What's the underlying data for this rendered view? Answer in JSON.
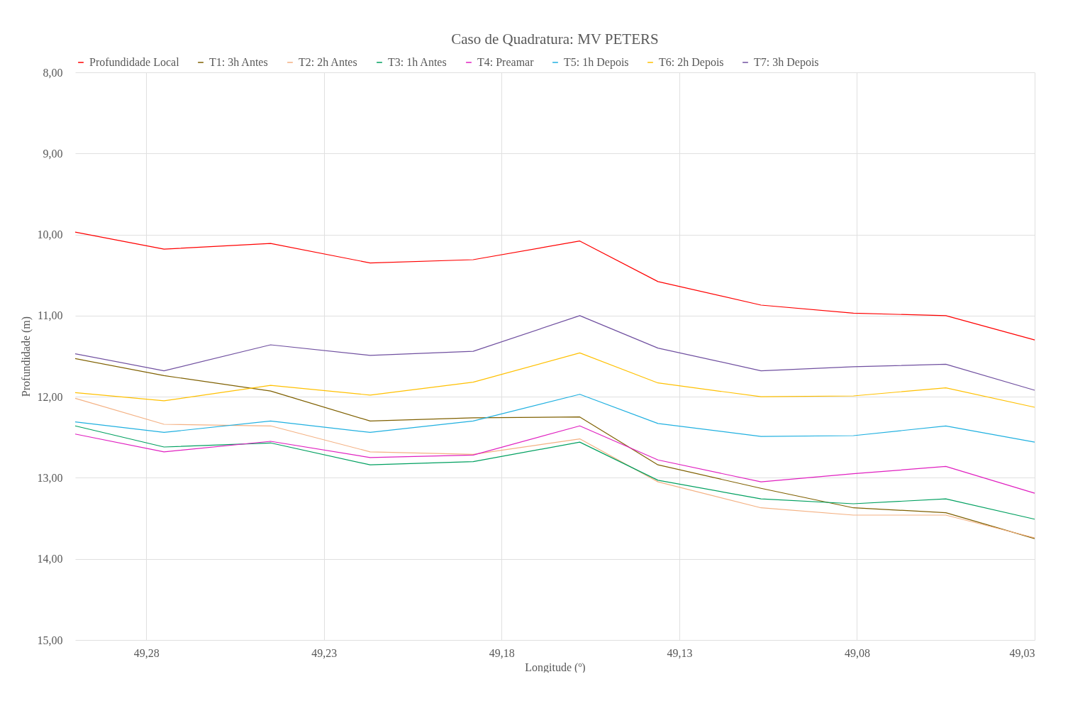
{
  "chart_data": {
    "type": "line",
    "title": "Caso de Quadratura: MV PETERS",
    "xlabel": "Longitude (º)",
    "ylabel": "Profundidade (m)",
    "x": [
      49.3,
      49.275,
      49.245,
      49.217,
      49.188,
      49.158,
      49.136,
      49.107,
      49.081,
      49.055,
      49.03
    ],
    "xlim": [
      49.3,
      49.03
    ],
    "xticks": [
      {
        "value": 49.28,
        "label": "49,28"
      },
      {
        "value": 49.23,
        "label": "49,23"
      },
      {
        "value": 49.18,
        "label": "49,18"
      },
      {
        "value": 49.13,
        "label": "49,13"
      },
      {
        "value": 49.08,
        "label": "49,08"
      },
      {
        "value": 49.03,
        "label": "49,03"
      }
    ],
    "ylim": [
      15,
      8
    ],
    "yticks": [
      {
        "value": 8,
        "label": "8,00"
      },
      {
        "value": 9,
        "label": "9,00"
      },
      {
        "value": 10,
        "label": "10,00"
      },
      {
        "value": 11,
        "label": "11,00"
      },
      {
        "value": 12,
        "label": "12,00"
      },
      {
        "value": 13,
        "label": "13,00"
      },
      {
        "value": 14,
        "label": "14,00"
      },
      {
        "value": 15,
        "label": "15,00"
      }
    ],
    "series": [
      {
        "name": "Profundidade Local",
        "color": "#ff0000",
        "values": [
          9.97,
          10.18,
          10.11,
          10.35,
          10.31,
          10.08,
          10.58,
          10.87,
          10.97,
          11.0,
          11.3
        ]
      },
      {
        "name": "T1: 3h Antes",
        "color": "#7f6000",
        "values": [
          11.53,
          11.74,
          11.93,
          12.3,
          12.26,
          12.25,
          12.84,
          13.13,
          13.37,
          13.43,
          13.75
        ]
      },
      {
        "name": "T2: 2h Antes",
        "color": "#f4b183",
        "values": [
          12.02,
          12.34,
          12.36,
          12.68,
          12.71,
          12.52,
          13.05,
          13.37,
          13.46,
          13.46,
          13.74
        ]
      },
      {
        "name": "T3: 1h Antes",
        "color": "#00a060",
        "values": [
          12.36,
          12.62,
          12.57,
          12.84,
          12.8,
          12.56,
          13.03,
          13.26,
          13.32,
          13.26,
          13.51
        ]
      },
      {
        "name": "T4: Preamar",
        "color": "#e020c0",
        "values": [
          12.46,
          12.68,
          12.55,
          12.75,
          12.72,
          12.36,
          12.78,
          13.05,
          12.95,
          12.86,
          13.19
        ]
      },
      {
        "name": "T5: 1h Depois",
        "color": "#20b0e0",
        "values": [
          12.31,
          12.44,
          12.3,
          12.44,
          12.3,
          11.97,
          12.33,
          12.49,
          12.48,
          12.36,
          12.56
        ]
      },
      {
        "name": "T6: 2h Depois",
        "color": "#ffc000",
        "values": [
          11.95,
          12.05,
          11.86,
          11.98,
          11.82,
          11.46,
          11.83,
          12.0,
          11.99,
          11.89,
          12.13
        ]
      },
      {
        "name": "T7: 3h Depois",
        "color": "#7050a0",
        "values": [
          11.47,
          11.68,
          11.36,
          11.49,
          11.44,
          11.0,
          11.4,
          11.68,
          11.63,
          11.6,
          11.92
        ]
      }
    ],
    "grid": true,
    "legend": "top",
    "line_style": "solid",
    "marker": "none"
  }
}
